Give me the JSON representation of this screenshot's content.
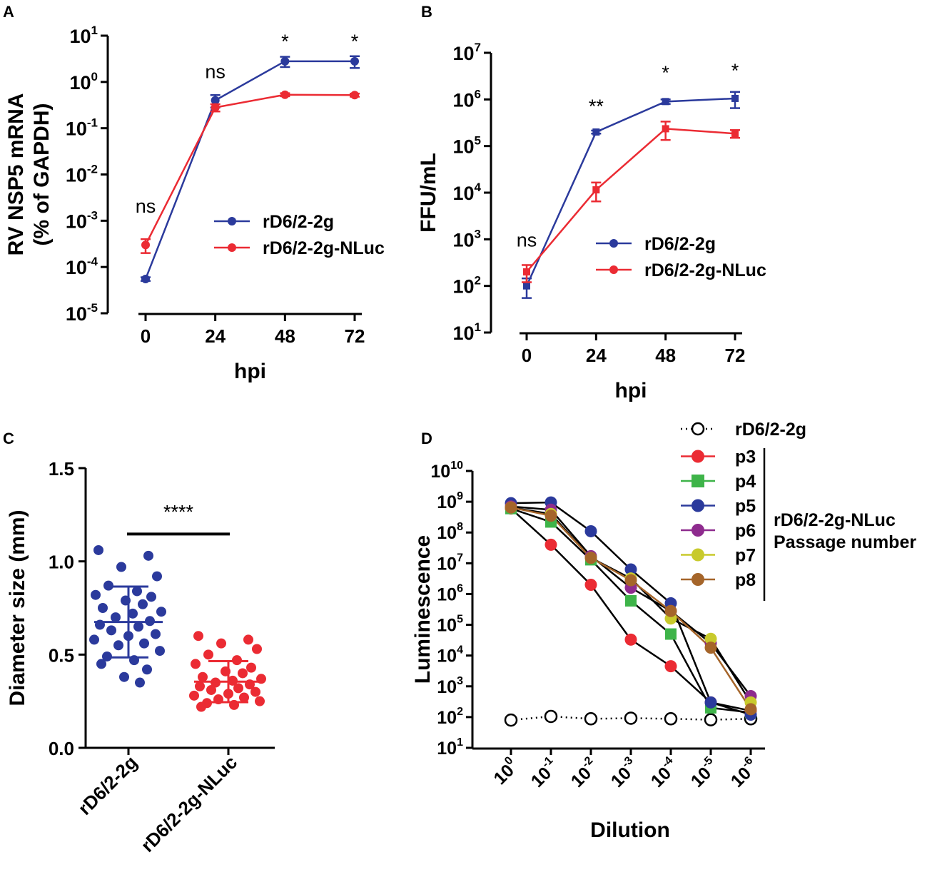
{
  "figure": {
    "panels": [
      "A",
      "B",
      "C",
      "D"
    ],
    "colors": {
      "blue": "#2B3A9C",
      "red": "#EB2B33",
      "black": "#000000"
    }
  },
  "chart_data": [
    {
      "id": "A",
      "type": "line",
      "title": "",
      "xlabel": "hpi",
      "ylabel_line1": "RV NSP5 mRNA",
      "ylabel_line2": "(% of GAPDH)",
      "yscale": "log",
      "ylim": [
        1e-05,
        10
      ],
      "y_tick_exponents": [
        "1",
        "0",
        "-1",
        "-2",
        "-3",
        "-4",
        "-5"
      ],
      "x_ticks": [
        "0",
        "24",
        "48",
        "72"
      ],
      "x": [
        0,
        24,
        48,
        72
      ],
      "series": [
        {
          "name": "rD6/2-2g",
          "color": "#2B3A9C",
          "values": [
            5.5e-05,
            0.4,
            2.8,
            2.8
          ],
          "errors": [
            5e-06,
            0.12,
            0.7,
            0.8
          ]
        },
        {
          "name": "rD6/2-2g-NLuc",
          "color": "#EB2B33",
          "values": [
            0.0003,
            0.28,
            0.53,
            0.52
          ],
          "errors": [
            0.0001,
            0.05,
            0.04,
            0.04
          ]
        }
      ],
      "annotations": [
        {
          "x": 0,
          "text": "ns",
          "y": 0.0015
        },
        {
          "x": 24,
          "text": "ns",
          "y": 1.2
        },
        {
          "x": 48,
          "text": "*",
          "y": 5.5
        },
        {
          "x": 72,
          "text": "*",
          "y": 5.5
        }
      ],
      "legend_position": "center-right"
    },
    {
      "id": "B",
      "type": "line",
      "title": "",
      "xlabel": "hpi",
      "ylabel": "FFU/mL",
      "yscale": "log",
      "ylim": [
        10,
        10000000
      ],
      "y_tick_exponents": [
        "7",
        "6",
        "5",
        "4",
        "3",
        "2",
        "1"
      ],
      "x_ticks": [
        "0",
        "24",
        "48",
        "72"
      ],
      "x": [
        0,
        24,
        48,
        72
      ],
      "series": [
        {
          "name": "rD6/2-2g",
          "color": "#2B3A9C",
          "values": [
            100,
            200000,
            900000,
            1050000
          ],
          "errors": [
            45,
            15000,
            100000,
            400000
          ]
        },
        {
          "name": "rD6/2-2g-NLuc",
          "color": "#EB2B33",
          "values": [
            200,
            11500,
            235000,
            185000
          ],
          "errors": [
            80,
            5000,
            100000,
            35000
          ]
        }
      ],
      "annotations": [
        {
          "x": 0,
          "text": "ns",
          "y": 700
        },
        {
          "x": 24,
          "text": "**",
          "y": 520000
        },
        {
          "x": 48,
          "text": "*",
          "y": 2700000
        },
        {
          "x": 72,
          "text": "*",
          "y": 3000000
        }
      ],
      "legend_position": "center-right"
    },
    {
      "id": "C",
      "type": "scatter",
      "title": "",
      "xlabel": "",
      "ylabel": "Diameter size (mm)",
      "ylim": [
        0.0,
        1.5
      ],
      "y_ticks": [
        "0.0",
        "0.5",
        "1.0",
        "1.5"
      ],
      "categories": [
        "rD6/2-2g",
        "rD6/2-2g-NLuc"
      ],
      "series": [
        {
          "name": "rD6/2-2g",
          "color": "#2B3A9C",
          "mean": 0.675,
          "sd": 0.19,
          "values": [
            1.06,
            1.03,
            0.97,
            0.92,
            0.87,
            0.84,
            0.82,
            0.81,
            0.79,
            0.77,
            0.75,
            0.73,
            0.72,
            0.7,
            0.68,
            0.66,
            0.65,
            0.63,
            0.61,
            0.6,
            0.58,
            0.56,
            0.55,
            0.52,
            0.49,
            0.47,
            0.45,
            0.42,
            0.38,
            0.35
          ]
        },
        {
          "name": "rD6/2-2g-NLuc",
          "color": "#EB2B33",
          "mean": 0.355,
          "sd": 0.11,
          "values": [
            0.6,
            0.58,
            0.56,
            0.53,
            0.5,
            0.47,
            0.45,
            0.43,
            0.41,
            0.4,
            0.38,
            0.37,
            0.36,
            0.35,
            0.34,
            0.33,
            0.32,
            0.31,
            0.3,
            0.29,
            0.28,
            0.27,
            0.26,
            0.25,
            0.24,
            0.23,
            0.22
          ]
        }
      ],
      "significance": {
        "text": "****",
        "y": 1.2
      }
    },
    {
      "id": "D",
      "type": "line",
      "title": "",
      "xlabel": "Dilution",
      "ylabel": "Luminescence",
      "yscale": "log",
      "ylim": [
        10,
        10000000000
      ],
      "y_tick_exponents": [
        "10",
        "9",
        "8",
        "7",
        "6",
        "5",
        "4",
        "3",
        "2",
        "1"
      ],
      "x_tick_exponents": [
        "0",
        "-1",
        "-2",
        "-3",
        "-4",
        "-5",
        "-6"
      ],
      "x": [
        0,
        -1,
        -2,
        -3,
        -4,
        -5,
        -6
      ],
      "series": [
        {
          "name": "rD6/2-2g",
          "color": "#000000",
          "marker": "open-circle",
          "dotted": true,
          "values": [
            80,
            105,
            88,
            92,
            88,
            82,
            88
          ]
        },
        {
          "name": "p3",
          "color": "#EB2B33",
          "marker": "circle",
          "values": [
            600000000,
            40000000,
            2000000,
            33000,
            4500,
            300,
            160
          ]
        },
        {
          "name": "p4",
          "color": "#3EB449",
          "marker": "square",
          "values": [
            600000000,
            220000000,
            13000000,
            600000,
            50000,
            200,
            140
          ]
        },
        {
          "name": "p5",
          "color": "#2B3A9C",
          "marker": "circle",
          "values": [
            900000000,
            950000000,
            110000000,
            6300000,
            500000,
            300,
            120
          ]
        },
        {
          "name": "p6",
          "color": "#8E2B8E",
          "marker": "circle",
          "values": [
            700000000,
            550000000,
            17000000,
            1600000,
            280000,
            25000,
            480
          ]
        },
        {
          "name": "p7",
          "color": "#C8CA2C",
          "marker": "circle",
          "values": [
            650000000,
            400000000,
            15000000,
            3200000,
            160000,
            35000,
            300
          ]
        },
        {
          "name": "p8",
          "color": "#A5652A",
          "marker": "circle",
          "values": [
            650000000,
            350000000,
            15000000,
            2800000,
            280000,
            18000,
            180
          ]
        }
      ],
      "legend_position": "top-right",
      "legend_group_label_line1": "rD6/2-2g-NLuc",
      "legend_group_label_line2": "Passage number"
    }
  ]
}
